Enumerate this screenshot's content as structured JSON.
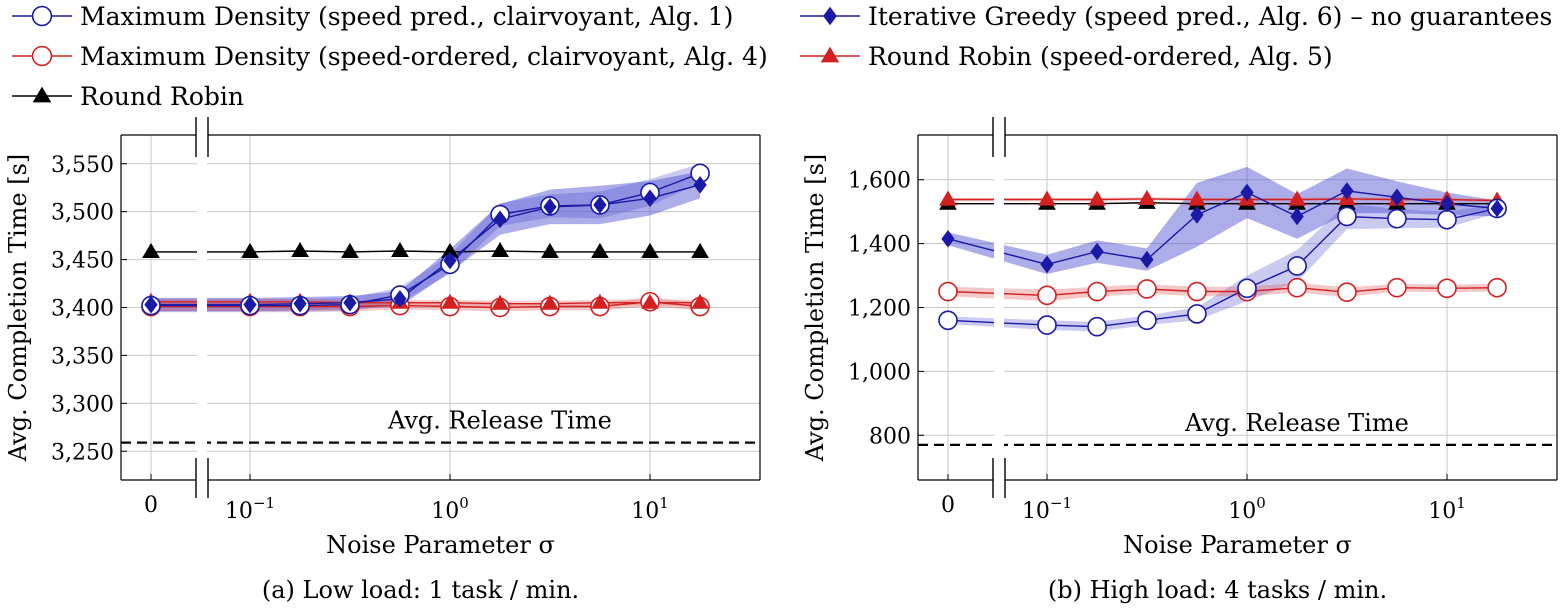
{
  "legend": {
    "items": [
      {
        "id": "md_pred",
        "label": "Maximum Density (speed pred., clairvoyant, Alg. 1)",
        "color": "#1a1aa6",
        "marker": "circle-open"
      },
      {
        "id": "ig",
        "label": "Iterative Greedy (speed pred., Alg. 6) – no guarantees",
        "color": "#1a1aa6",
        "marker": "diamond"
      },
      {
        "id": "md_ord",
        "label": "Maximum Density (speed-ordered, clairvoyant, Alg. 4)",
        "color": "#d42020",
        "marker": "circle-open"
      },
      {
        "id": "rr_ord",
        "label": "Round Robin (speed-ordered, Alg. 5)",
        "color": "#d42020",
        "marker": "triangle"
      },
      {
        "id": "rr",
        "label": "Round Robin",
        "color": "#000000",
        "marker": "triangle"
      }
    ]
  },
  "chart_data": [
    {
      "type": "line",
      "caption": "(a) Low load: 1 task / min.",
      "xlabel": "Noise Parameter σ",
      "ylabel": "Avg. Completion Time [s]",
      "xscale": "log with broken axis at 0",
      "x_ticks": [
        "0",
        "10^-1",
        "10^0",
        "10^1"
      ],
      "y_ticks": [
        "3,250",
        "3,300",
        "3,350",
        "3,400",
        "3,450",
        "3,500",
        "3,550"
      ],
      "ylim": [
        3220,
        3580
      ],
      "grid": true,
      "x": [
        0,
        0.1,
        0.178,
        0.316,
        0.562,
        1,
        1.78,
        3.16,
        5.62,
        10,
        17.8
      ],
      "reference_line": {
        "label": "Avg. Release Time",
        "y": 3259
      },
      "series": [
        {
          "name": "Maximum Density (speed pred., clairvoyant, Alg. 1)",
          "values": [
            3402,
            3402,
            3402,
            3403,
            3413,
            3445,
            3497,
            3506,
            3507,
            3520,
            3540
          ],
          "band": [
            7,
            7,
            7,
            7,
            8,
            10,
            12,
            12,
            14,
            14,
            10
          ]
        },
        {
          "name": "Iterative Greedy (speed pred., Alg. 6) – no guarantees",
          "values": [
            3403,
            3403,
            3404,
            3405,
            3409,
            3449,
            3492,
            3505,
            3507,
            3514,
            3528
          ],
          "band": [
            7,
            7,
            7,
            7,
            8,
            12,
            16,
            18,
            20,
            18,
            14
          ]
        },
        {
          "name": "Maximum Density (speed-ordered, clairvoyant, Alg. 4)",
          "values": [
            3401,
            3401,
            3401,
            3401,
            3402,
            3401,
            3400,
            3401,
            3401,
            3406,
            3401
          ],
          "band": [
            5,
            5,
            5,
            5,
            4,
            4,
            4,
            4,
            4,
            5,
            4
          ]
        },
        {
          "name": "Round Robin (speed-ordered, Alg. 5)",
          "values": [
            3406,
            3406,
            3406,
            3405,
            3405,
            3405,
            3404,
            3404,
            3405,
            3405,
            3405
          ],
          "band": [
            3,
            3,
            3,
            3,
            3,
            3,
            3,
            3,
            3,
            3,
            3
          ]
        },
        {
          "name": "Round Robin",
          "values": [
            3458,
            3458,
            3459,
            3458,
            3459,
            3458,
            3459,
            3458,
            3458,
            3458,
            3458
          ],
          "band": [
            1,
            1,
            1,
            1,
            1,
            1,
            1,
            1,
            1,
            1,
            1
          ]
        }
      ]
    },
    {
      "type": "line",
      "caption": "(b) High load: 4 tasks / min.",
      "xlabel": "Noise Parameter σ",
      "ylabel": "Avg. Completion Time [s]",
      "xscale": "log with broken axis at 0",
      "x_ticks": [
        "0",
        "10^-1",
        "10^0",
        "10^1"
      ],
      "y_ticks": [
        "800",
        "1,000",
        "1,200",
        "1,400",
        "1,600"
      ],
      "ylim": [
        660,
        1740
      ],
      "grid": true,
      "x": [
        0,
        0.1,
        0.178,
        0.316,
        0.562,
        1,
        1.78,
        3.16,
        5.62,
        10,
        17.8
      ],
      "reference_line": {
        "label": "Avg. Release Time",
        "y": 770
      },
      "series": [
        {
          "name": "Maximum Density (speed pred., clairvoyant, Alg. 1)",
          "values": [
            1160,
            1145,
            1140,
            1160,
            1180,
            1260,
            1330,
            1485,
            1478,
            1475,
            1510
          ],
          "band": [
            12,
            15,
            15,
            15,
            20,
            40,
            50,
            40,
            30,
            25,
            15
          ]
        },
        {
          "name": "Iterative Greedy (speed pred., Alg. 6) – no guarantees",
          "values": [
            1415,
            1335,
            1375,
            1350,
            1490,
            1560,
            1485,
            1565,
            1545,
            1525,
            1510
          ],
          "band": [
            20,
            30,
            35,
            35,
            100,
            80,
            70,
            70,
            50,
            35,
            25
          ]
        },
        {
          "name": "Maximum Density (speed-ordered, clairvoyant, Alg. 4)",
          "values": [
            1250,
            1238,
            1250,
            1258,
            1250,
            1250,
            1262,
            1248,
            1262,
            1260,
            1262
          ],
          "band": [
            15,
            18,
            15,
            15,
            15,
            15,
            15,
            15,
            12,
            12,
            12
          ]
        },
        {
          "name": "Round Robin (speed-ordered, Alg. 5)",
          "values": [
            1538,
            1538,
            1538,
            1540,
            1538,
            1538,
            1538,
            1540,
            1538,
            1538,
            1535
          ],
          "band": [
            5,
            5,
            5,
            5,
            5,
            5,
            5,
            5,
            5,
            5,
            5
          ]
        },
        {
          "name": "Round Robin",
          "values": [
            1525,
            1525,
            1525,
            1528,
            1525,
            1525,
            1525,
            1525,
            1525,
            1525,
            1525
          ],
          "band": [
            3,
            3,
            3,
            3,
            3,
            3,
            3,
            3,
            3,
            3,
            3
          ]
        }
      ]
    }
  ]
}
